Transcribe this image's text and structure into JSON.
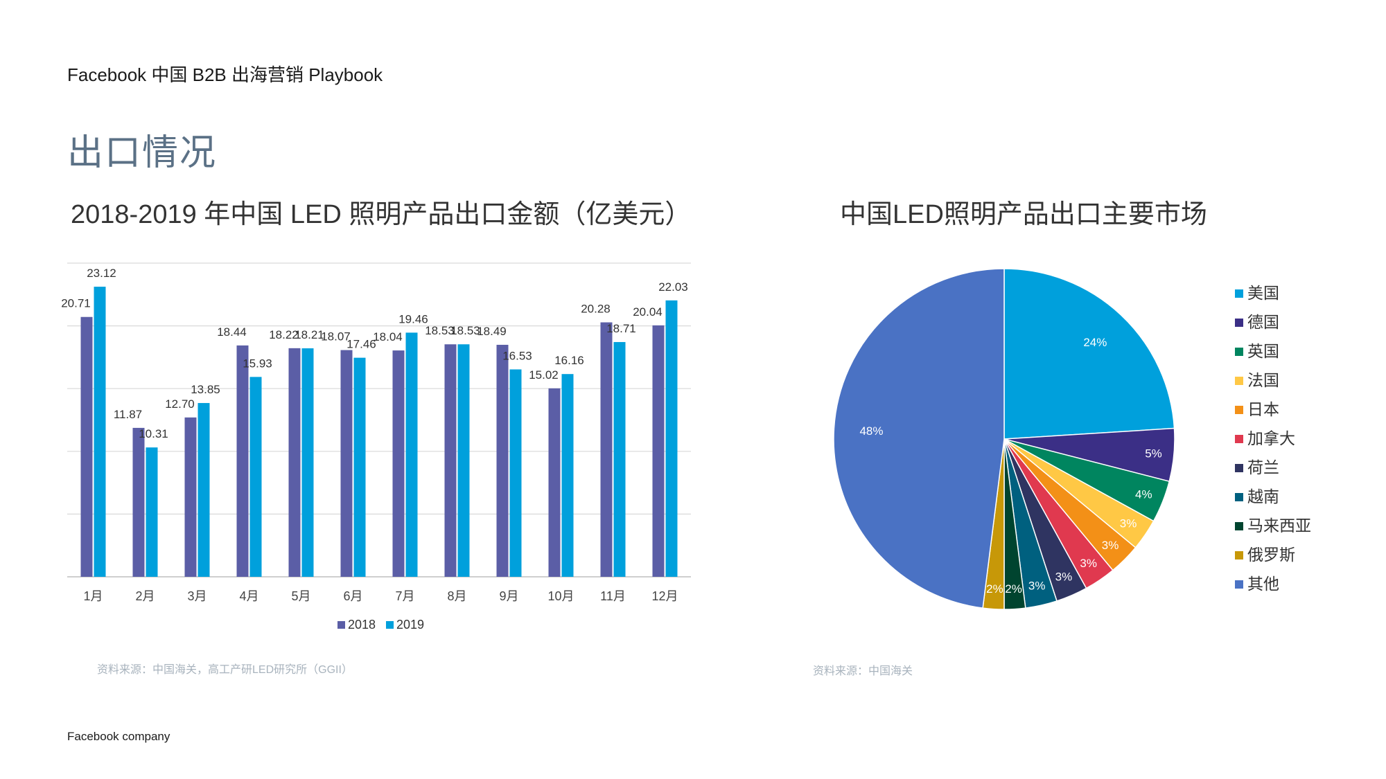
{
  "header": {
    "title": "Facebook 中国 B2B 出海营销 Playbook",
    "page_title": "出口情况",
    "footer": "Facebook company"
  },
  "bar_section": {
    "title": "2018-2019 年中国 LED 照明产品出口金额（亿美元）",
    "source": "资料来源：中国海关，高工产研LED研究所（GGII）"
  },
  "pie_section": {
    "title": "中国LED照明产品出口主要市场",
    "source": "资料来源：中国海关"
  },
  "chart_data": [
    {
      "type": "bar",
      "title": "2018-2019 年中国 LED 照明产品出口金额（亿美元）",
      "categories": [
        "1月",
        "2月",
        "3月",
        "4月",
        "5月",
        "6月",
        "7月",
        "8月",
        "9月",
        "10月",
        "11月",
        "12月"
      ],
      "series": [
        {
          "name": "2018",
          "color": "#5b5ea6",
          "values": [
            20.71,
            11.87,
            12.7,
            18.44,
            18.22,
            18.07,
            18.04,
            18.53,
            18.49,
            15.02,
            20.28,
            20.04
          ]
        },
        {
          "name": "2019",
          "color": "#00a0dc",
          "values": [
            23.12,
            10.31,
            13.85,
            15.93,
            18.21,
            17.46,
            19.46,
            18.53,
            16.53,
            16.16,
            18.71,
            22.03
          ]
        }
      ],
      "ylim": [
        0,
        25
      ],
      "grid": true,
      "legend": "bottom"
    },
    {
      "type": "pie",
      "title": "中国LED照明产品出口主要市场",
      "labels": [
        "美国",
        "德国",
        "英国",
        "法国",
        "日本",
        "加拿大",
        "荷兰",
        "越南",
        "马来西亚",
        "俄罗斯",
        "其他"
      ],
      "values": [
        24,
        5,
        4,
        3,
        3,
        3,
        3,
        3,
        2,
        2,
        48
      ],
      "value_labels": [
        "24%",
        "5%",
        "4%",
        "3%",
        "3%",
        "3%",
        "3%",
        "3%",
        "2%",
        "2%",
        "48%"
      ],
      "colors": [
        "#00a0dc",
        "#3b2f86",
        "#00855f",
        "#ffc845",
        "#f39017",
        "#e0394f",
        "#2f3461",
        "#00607f",
        "#00442f",
        "#c79808",
        "#4a72c4"
      ],
      "legend": "right"
    }
  ]
}
